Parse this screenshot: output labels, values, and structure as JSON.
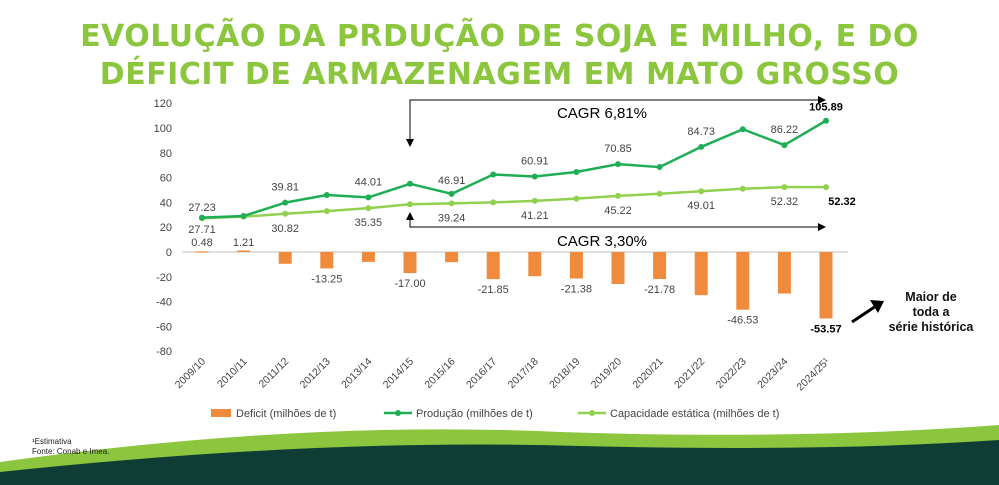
{
  "title_line1": "EVOLUÇÃO DA PRDUÇÃO DE SOJA E MILHO, E DO",
  "title_line2": "DÉFICIT DE ARMAZENAGEM EM MATO GROSSO",
  "chart_data": {
    "type": "bar+line",
    "categories": [
      "2009/10",
      "2010/11",
      "2011/12",
      "2012/13",
      "2013/14",
      "2014/15",
      "2015/16",
      "2016/17",
      "2017/18",
      "2018/19",
      "2019/20",
      "2020/21",
      "2021/22",
      "2022/23",
      "2023/24",
      "2024/25¹"
    ],
    "ylim": [
      -80,
      120
    ],
    "yticks": [
      "120",
      "100",
      "80",
      "60",
      "40",
      "20",
      "0",
      "-20",
      "-40",
      "-60",
      "-80"
    ],
    "series": [
      {
        "name": "Deficit (milhões de t)",
        "kind": "bar",
        "color": "#f08a3c",
        "values": [
          0.48,
          1.21,
          -9.5,
          -13.25,
          -8.0,
          -17.0,
          -8.2,
          -21.85,
          -19.5,
          -21.38,
          -25.8,
          -21.78,
          -34.8,
          -46.53,
          -33.5,
          -53.57
        ]
      },
      {
        "name": "Produção (milhões de t)",
        "kind": "line",
        "color": "#1fad55",
        "values": [
          27.71,
          29.0,
          39.81,
          46.0,
          44.01,
          55.0,
          46.91,
          62.5,
          60.91,
          64.5,
          70.85,
          68.5,
          84.73,
          99.0,
          86.22,
          105.89
        ]
      },
      {
        "name": "Capacidade estática (milhões de t)",
        "kind": "line",
        "color": "#92d050",
        "values": [
          27.23,
          28.5,
          30.82,
          33.0,
          35.35,
          38.5,
          39.24,
          40.0,
          41.21,
          43.0,
          45.22,
          47.0,
          49.01,
          51.0,
          52.32,
          52.32
        ]
      }
    ],
    "data_labels": {
      "deficit": [
        "0.48",
        "1.21",
        "-13.25",
        "-17.00",
        "-21.85",
        "-21.38",
        "-21.78",
        "-46.53",
        "-53.57"
      ],
      "producao": [
        "27.71",
        "39.81",
        "44.01",
        "46.91",
        "60.91",
        "70.85",
        "84.73",
        "86.22",
        "105.89"
      ],
      "capacidade": [
        "27.23",
        "30.82",
        "35.35",
        "39.24",
        "41.21",
        "45.22",
        "49.01",
        "52.32",
        "52.32"
      ]
    },
    "annotations": {
      "cagr_top": "CAGR 6,81%",
      "cagr_bottom": "CAGR 3,30%"
    },
    "legend_position": "bottom"
  },
  "callout": {
    "line1": "Maior de",
    "line2": "toda a",
    "line3": "série histórica"
  },
  "footnote": {
    "line1": "¹Estimativa",
    "line2": "Fonte: Conab e Imea."
  },
  "colors": {
    "title": "#8cc63f",
    "bar": "#f08a3c",
    "producao": "#1fad55",
    "capacidade": "#92d050",
    "band_dark": "#0f3d35",
    "band_light": "#8cc63f"
  }
}
